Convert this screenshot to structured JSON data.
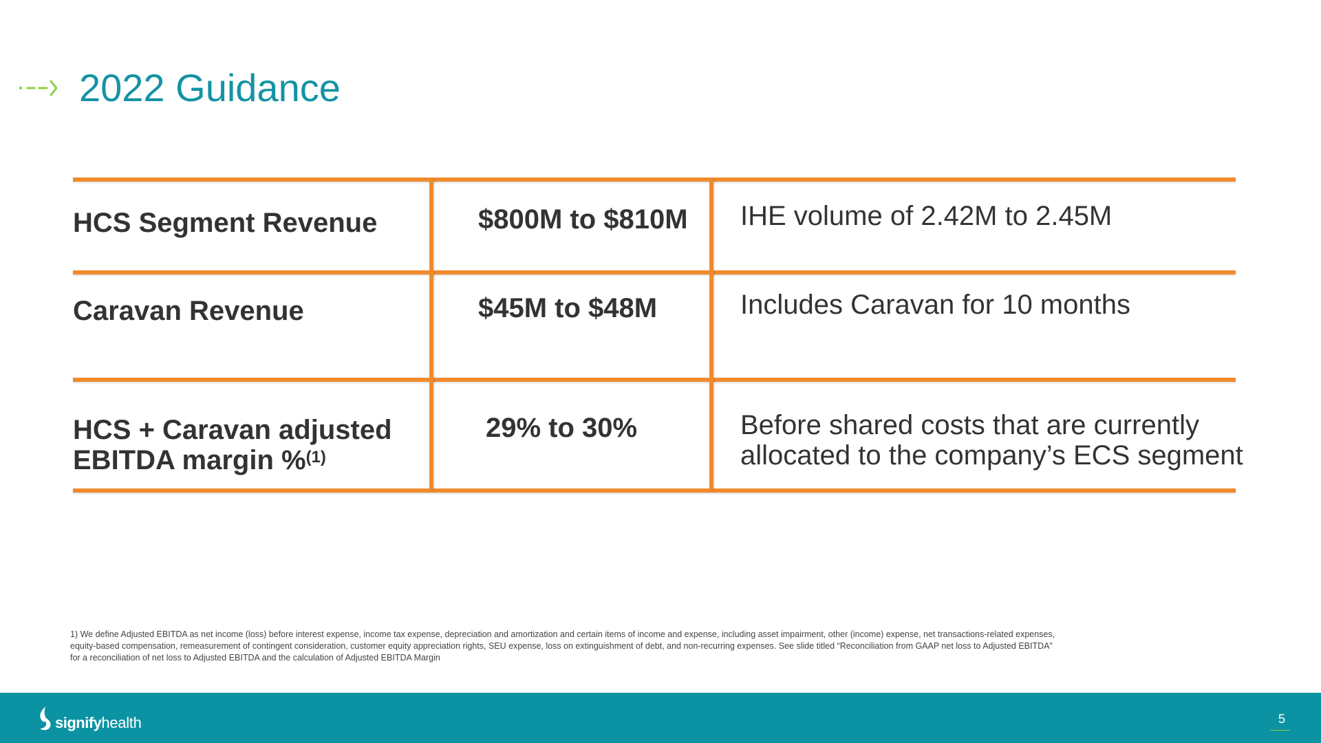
{
  "title": {
    "icon": "dashed-arrow-icon",
    "text": "2022 Guidance"
  },
  "table": {
    "rows": [
      {
        "label": "HCS Segment Revenue",
        "value": "$800M to $810M",
        "note": "IHE volume of 2.42M to 2.45M"
      },
      {
        "label": "Caravan Revenue",
        "value": "$45M to $48M",
        "note": "Includes Caravan for 10 months"
      },
      {
        "label_line1": "HCS + Caravan adjusted",
        "label_line2": "EBITDA margin %",
        "label_sup": "(1)",
        "value": "29% to 30%",
        "note_line1": "Before shared costs that are currently",
        "note_line2": "allocated to the company’s ECS segment"
      }
    ]
  },
  "footnote": "1) We define Adjusted EBITDA as net income (loss) before interest expense, income tax expense, depreciation and amortization and certain items of income and expense, including asset impairment, other (income) expense, net transactions-related expenses, equity-based compensation, remeasurement of contingent consideration, customer equity appreciation rights, SEU expense, loss on extinguishment of debt, and non-recurring expenses. See slide titled “Reconciliation from GAAP net loss to Adjusted EBITDA” for a reconciliation of net loss to Adjusted EBITDA and the calculation of Adjusted EBITDA Margin",
  "footer": {
    "logo_icon": "signify-health-logo-icon",
    "logo_bold": "signify",
    "logo_light": "health",
    "page_number": "5"
  },
  "colors": {
    "title": "#1493a3",
    "table_rule": "#f08a2c",
    "footer_band": "#0c93a3",
    "arrow_accent": "#8ccf3c"
  }
}
